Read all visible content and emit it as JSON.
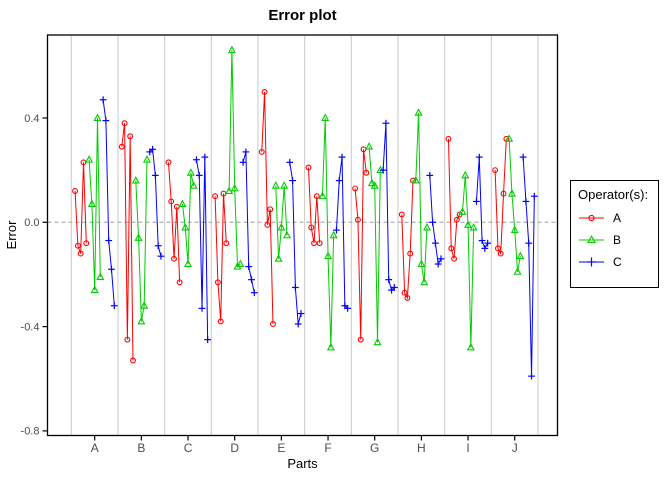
{
  "chart_data": {
    "type": "line",
    "title": "Error plot",
    "xlabel": "Parts",
    "ylabel": "Error",
    "legend_title": "Operator(s):",
    "parts": [
      "A",
      "B",
      "C",
      "D",
      "E",
      "F",
      "G",
      "H",
      "I",
      "J"
    ],
    "y_ticks": [
      "0.4",
      "0.0",
      "-0.4",
      "-0.8"
    ],
    "y_tick_values": [
      0.4,
      0.0,
      -0.4,
      -0.8
    ],
    "ylim": [
      -0.81,
      0.72
    ],
    "grid": "vertical-part-separators",
    "zero_line": "dashed",
    "legend_position": "right",
    "trials_per_operator": 5,
    "colors": {
      "operator_a": "#FF0000",
      "operator_b": "#00CC00",
      "operator_c": "#0000FF",
      "gridline": "#C9C9C9",
      "zero_line": "#9E9E9E",
      "tick_label": "#4D4D4D",
      "axis": "#000000"
    },
    "series": [
      {
        "name": "A",
        "marker": "circle",
        "color": "#FF0000",
        "values_by_part": {
          "A": [
            0.12,
            -0.09,
            -0.12,
            0.23,
            -0.08
          ],
          "B": [
            0.29,
            0.38,
            -0.45,
            0.33,
            -0.53
          ],
          "C": [
            0.23,
            0.08,
            -0.14,
            0.06,
            -0.23
          ],
          "D": [
            0.1,
            -0.23,
            -0.38,
            0.11,
            -0.08
          ],
          "E": [
            0.27,
            0.5,
            -0.01,
            0.05,
            -0.39
          ],
          "F": [
            0.21,
            -0.02,
            -0.08,
            0.1,
            -0.08
          ],
          "G": [
            0.13,
            0.01,
            -0.45,
            0.28,
            0.19
          ],
          "H": [
            0.03,
            -0.27,
            -0.29,
            -0.12,
            0.16
          ],
          "I": [
            0.32,
            -0.1,
            -0.14,
            0.01,
            0.03
          ],
          "J": [
            0.2,
            -0.1,
            -0.12,
            0.11,
            0.32
          ]
        }
      },
      {
        "name": "B",
        "marker": "triangle",
        "color": "#00CC00",
        "values_by_part": {
          "A": [
            0.24,
            0.07,
            -0.26,
            0.4,
            -0.21
          ],
          "B": [
            0.16,
            -0.06,
            -0.38,
            -0.32,
            0.24
          ],
          "C": [
            0.07,
            -0.02,
            -0.16,
            0.19,
            0.14
          ],
          "D": [
            0.12,
            0.66,
            0.13,
            -0.17,
            -0.16
          ],
          "E": [
            0.14,
            -0.14,
            -0.02,
            0.14,
            -0.05
          ],
          "F": [
            0.1,
            0.4,
            -0.13,
            -0.48,
            -0.05
          ],
          "G": [
            0.29,
            0.15,
            0.14,
            -0.46,
            0.2
          ],
          "H": [
            0.16,
            0.42,
            -0.16,
            -0.23,
            -0.02
          ],
          "I": [
            0.04,
            0.18,
            -0.01,
            -0.48,
            -0.02
          ],
          "J": [
            0.32,
            0.11,
            -0.03,
            -0.19,
            -0.13
          ]
        }
      },
      {
        "name": "C",
        "marker": "plus",
        "color": "#0000FF",
        "values_by_part": {
          "A": [
            0.47,
            0.39,
            -0.07,
            -0.18,
            -0.32
          ],
          "B": [
            0.27,
            0.28,
            0.18,
            -0.09,
            -0.13
          ],
          "C": [
            0.24,
            0.18,
            -0.33,
            0.25,
            -0.45
          ],
          "D": [
            0.23,
            0.27,
            -0.17,
            -0.22,
            -0.27
          ],
          "E": [
            0.23,
            0.16,
            -0.25,
            -0.39,
            -0.35
          ],
          "F": [
            -0.03,
            0.16,
            0.25,
            -0.32,
            -0.33
          ],
          "G": [
            0.2,
            0.38,
            -0.22,
            -0.26,
            -0.25
          ],
          "H": [
            0.18,
            0.0,
            -0.08,
            -0.16,
            -0.14
          ],
          "I": [
            0.08,
            0.25,
            -0.07,
            -0.1,
            -0.08
          ],
          "J": [
            0.25,
            0.08,
            -0.08,
            -0.59,
            0.1
          ]
        }
      }
    ]
  }
}
